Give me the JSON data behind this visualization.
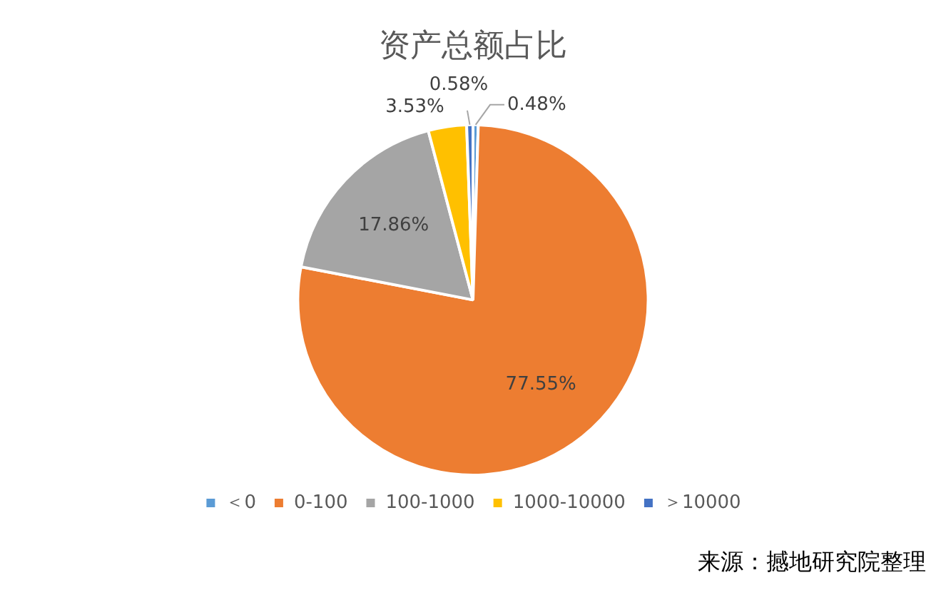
{
  "chart_data": {
    "type": "pie",
    "title": "资产总额占比",
    "categories": [
      "＜0",
      "0-100",
      "100-1000",
      "1000-10000",
      "＞10000"
    ],
    "values": [
      0.48,
      77.55,
      17.86,
      3.53,
      0.58
    ],
    "value_labels": [
      "0.48%",
      "77.55%",
      "17.86%",
      "3.53%",
      "0.58%"
    ],
    "colors": [
      "#5b9bd5",
      "#ed7d31",
      "#a5a5a5",
      "#ffc000",
      "#4472c4"
    ],
    "legend": "bottom",
    "annotations": [
      "来源：撼地研究院整理"
    ]
  }
}
